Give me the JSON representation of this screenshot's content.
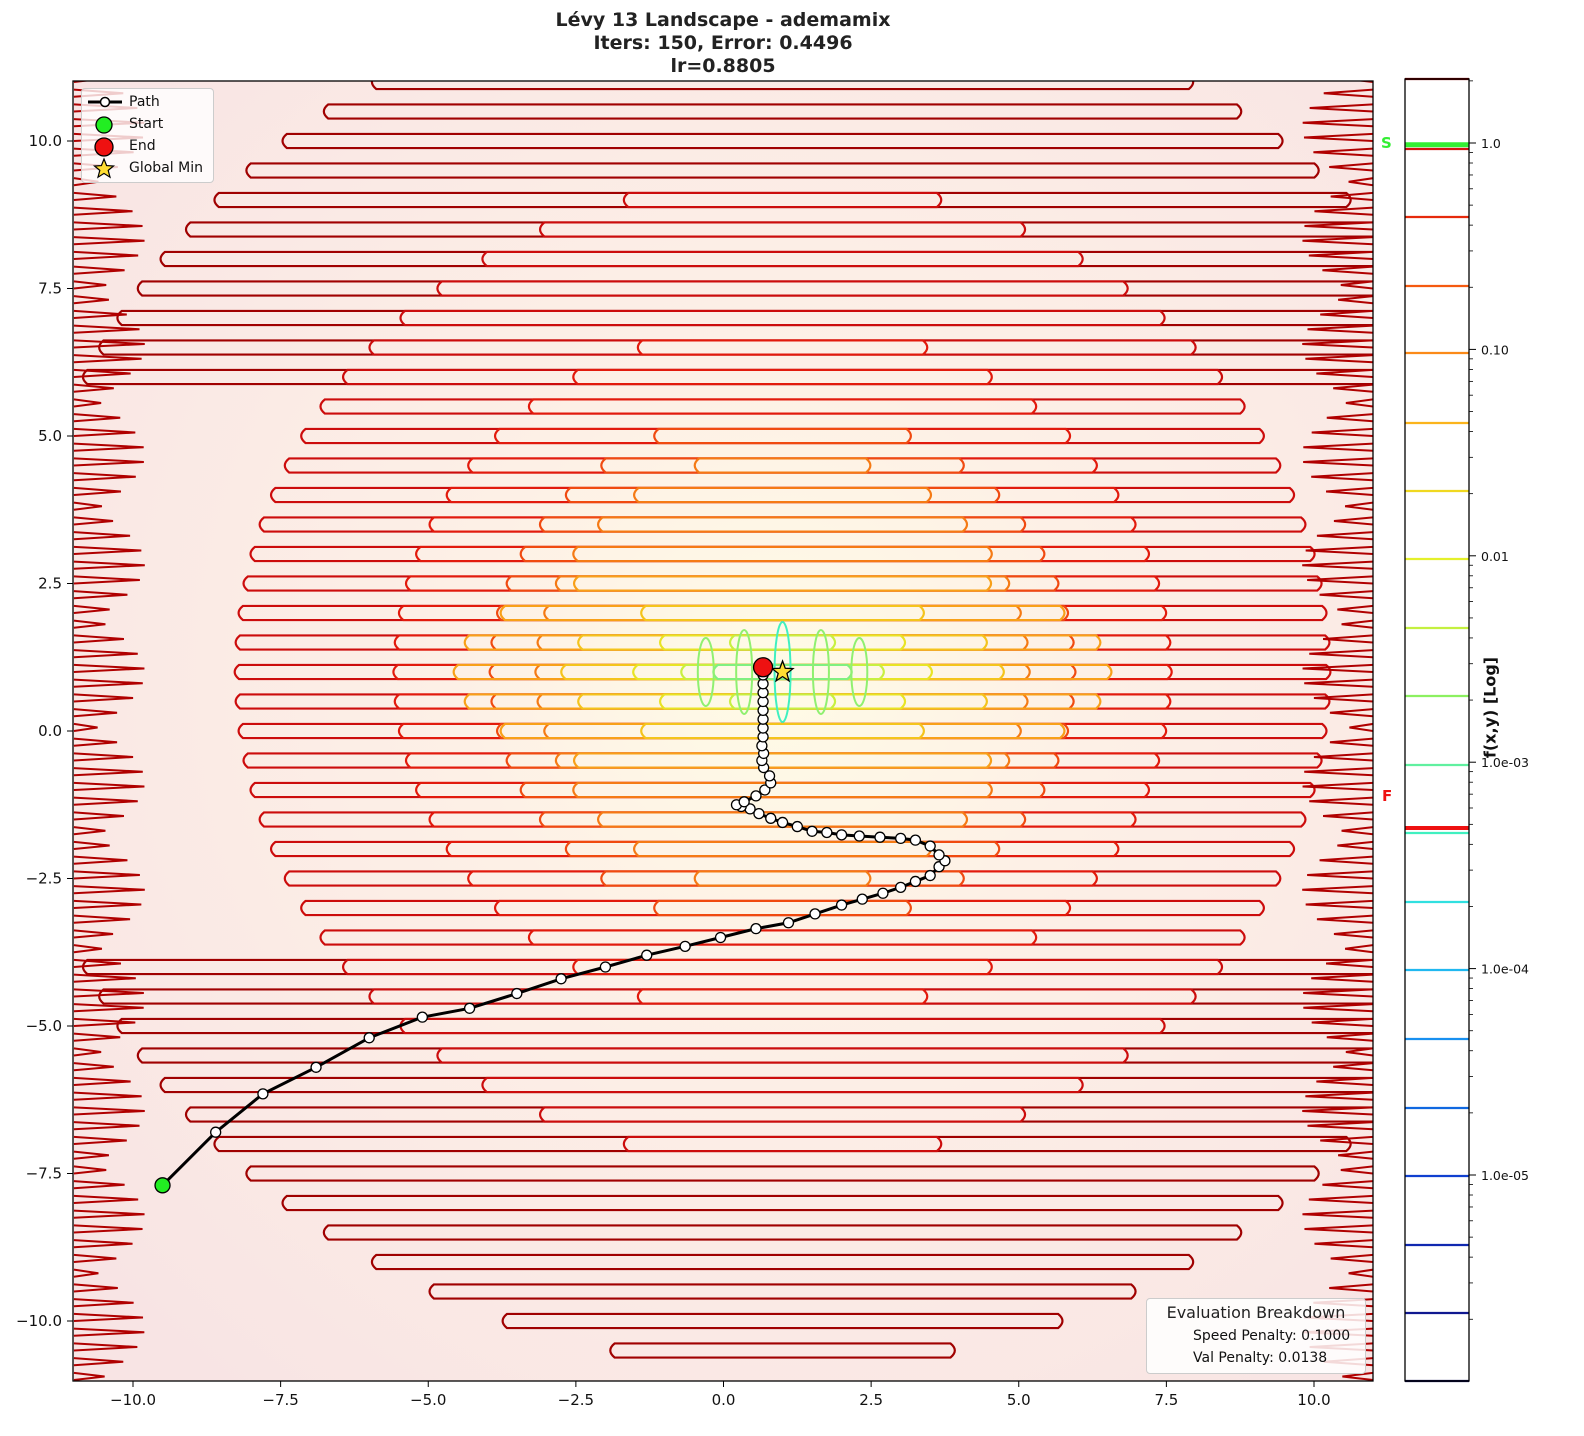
{
  "title": {
    "line1": "Lévy 13 Landscape - ademamix",
    "line2": "Iters: 150, Error: 0.4496",
    "line3": "lr=0.8805"
  },
  "legend": {
    "items": [
      {
        "label": "Path",
        "icon": "line-with-circle-marker",
        "color": "#000000"
      },
      {
        "label": "Start",
        "icon": "green-circle",
        "color": "#22dd22"
      },
      {
        "label": "End",
        "icon": "red-circle",
        "color": "#ee1111"
      },
      {
        "label": "Global Min",
        "icon": "yellow-star",
        "color": "#ffdd33"
      }
    ]
  },
  "evaluation": {
    "title": "Evaluation Breakdown",
    "speed_penalty": "Speed Penalty: 0.1000",
    "val_penalty": "Val Penalty: 0.0138"
  },
  "colorbar": {
    "label": "f(x,y) [Log]",
    "tick_labels": [
      "1.0",
      "0.10",
      "0.01",
      "1.0e-03",
      "1.0e-04",
      "1.0e-05"
    ],
    "start_marker": "S",
    "final_marker": "F",
    "start_color": "#33ee33",
    "final_color": "#ee1111"
  },
  "axes": {
    "x_ticks": [
      "−10.0",
      "−7.5",
      "−5.0",
      "−2.5",
      "0.0",
      "2.5",
      "5.0",
      "7.5",
      "10.0"
    ],
    "y_ticks": [
      "10.0",
      "7.5",
      "5.0",
      "2.5",
      "0.0",
      "−2.5",
      "−5.0",
      "−7.5",
      "−10.0"
    ]
  },
  "chart_data": {
    "type": "contour",
    "title": "Lévy 13 Landscape - ademamix\nIters: 150, Error: 0.4496\nlr=0.8805",
    "xlabel": "",
    "ylabel": "",
    "xlim": [
      -11,
      11
    ],
    "ylim": [
      -11,
      11
    ],
    "x_ticks": [
      -10.0,
      -7.5,
      -5.0,
      -2.5,
      0.0,
      2.5,
      5.0,
      7.5,
      10.0
    ],
    "y_ticks": [
      -10.0,
      -7.5,
      -5.0,
      -2.5,
      0.0,
      2.5,
      5.0,
      7.5,
      10.0
    ],
    "colorbar": {
      "label": "f(x,y) [Log]",
      "scale": "log",
      "ticks": [
        1.0,
        0.1,
        0.01,
        0.001,
        0.0001,
        1e-05
      ],
      "range": [
        1.8e-06,
        2.0
      ],
      "start_value_marker": 0.98,
      "final_value_marker": 0.00048
    },
    "contour_levels_colors": [
      "#8b0000",
      "#d41010",
      "#e62a0c",
      "#f55a10",
      "#fb8a18",
      "#fbb41c",
      "#f0d820",
      "#e4f02a",
      "#c4f040",
      "#8cf060",
      "#60f0a0",
      "#40f0c0",
      "#30e0e0",
      "#20b8f0",
      "#1890f0",
      "#1068e0",
      "#1040d0",
      "#1028b0",
      "#101890",
      "#0a0a50"
    ],
    "global_min": {
      "x": 1.0,
      "y": 1.0
    },
    "start": {
      "x": -9.5,
      "y": -7.7
    },
    "end": {
      "x": 0.67,
      "y": 1.08
    },
    "path": [
      [
        -9.5,
        -7.7
      ],
      [
        -8.6,
        -6.8
      ],
      [
        -7.8,
        -6.15
      ],
      [
        -6.9,
        -5.7
      ],
      [
        -6.0,
        -5.2
      ],
      [
        -5.1,
        -4.85
      ],
      [
        -4.3,
        -4.7
      ],
      [
        -3.5,
        -4.45
      ],
      [
        -2.75,
        -4.2
      ],
      [
        -2.0,
        -4.0
      ],
      [
        -1.3,
        -3.8
      ],
      [
        -0.65,
        -3.65
      ],
      [
        -0.05,
        -3.5
      ],
      [
        0.55,
        -3.35
      ],
      [
        1.1,
        -3.25
      ],
      [
        1.55,
        -3.1
      ],
      [
        2.0,
        -2.95
      ],
      [
        2.35,
        -2.85
      ],
      [
        2.7,
        -2.75
      ],
      [
        3.0,
        -2.65
      ],
      [
        3.25,
        -2.55
      ],
      [
        3.5,
        -2.45
      ],
      [
        3.65,
        -2.3
      ],
      [
        3.75,
        -2.2
      ],
      [
        3.65,
        -2.1
      ],
      [
        3.5,
        -1.95
      ],
      [
        3.25,
        -1.85
      ],
      [
        3.0,
        -1.82
      ],
      [
        2.65,
        -1.8
      ],
      [
        2.3,
        -1.78
      ],
      [
        2.0,
        -1.76
      ],
      [
        1.75,
        -1.72
      ],
      [
        1.5,
        -1.7
      ],
      [
        1.25,
        -1.62
      ],
      [
        1.0,
        -1.55
      ],
      [
        0.8,
        -1.48
      ],
      [
        0.6,
        -1.4
      ],
      [
        0.45,
        -1.32
      ],
      [
        0.3,
        -1.28
      ],
      [
        0.22,
        -1.25
      ],
      [
        0.35,
        -1.2
      ],
      [
        0.55,
        -1.1
      ],
      [
        0.7,
        -1.0
      ],
      [
        0.8,
        -0.88
      ],
      [
        0.78,
        -0.76
      ],
      [
        0.68,
        -0.62
      ],
      [
        0.65,
        -0.5
      ],
      [
        0.68,
        -0.38
      ],
      [
        0.65,
        -0.25
      ],
      [
        0.67,
        -0.1
      ],
      [
        0.67,
        0.05
      ],
      [
        0.67,
        0.2
      ],
      [
        0.67,
        0.35
      ],
      [
        0.67,
        0.5
      ],
      [
        0.67,
        0.65
      ],
      [
        0.67,
        0.8
      ],
      [
        0.67,
        0.95
      ],
      [
        0.67,
        1.08
      ]
    ],
    "annotations": [
      "Evaluation Breakdown",
      "Speed Penalty: 0.1000",
      "Val Penalty: 0.0138"
    ],
    "legend": [
      "Path",
      "Start",
      "End",
      "Global Min"
    ],
    "legend_position": "upper left",
    "grid": false
  }
}
